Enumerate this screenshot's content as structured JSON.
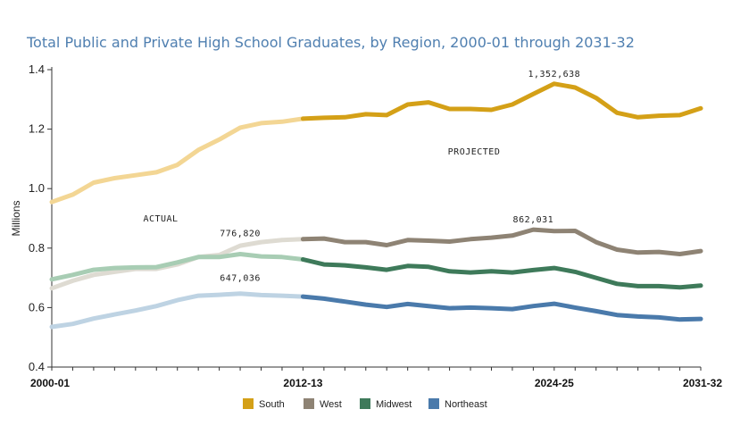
{
  "chart_data": {
    "type": "line",
    "title": "Total Public and Private High School Graduates, by Region, 2000-01 through 2031-32",
    "ylabel": "Millions",
    "xlabel": "",
    "ylim": [
      0.4,
      1.4
    ],
    "yticks": [
      "0.4",
      "0.6",
      "0.8",
      "1.0",
      "1.2",
      "1.4"
    ],
    "ytick_values": [
      0.4,
      0.6,
      0.8,
      1.0,
      1.2,
      1.4
    ],
    "x_tick_labels": [
      "2000-01",
      "2012-13",
      "2024-25",
      "2031-32"
    ],
    "x_tick_index": [
      0,
      12,
      24,
      31
    ],
    "projection_start_index": 12,
    "series": [
      {
        "name": "South",
        "color": "#d4a017",
        "light_color": "#f3d694",
        "values": [
          0.955,
          0.98,
          1.02,
          1.035,
          1.045,
          1.055,
          1.08,
          1.13,
          1.165,
          1.205,
          1.22,
          1.225,
          1.235,
          1.238,
          1.24,
          1.25,
          1.247,
          1.283,
          1.29,
          1.268,
          1.268,
          1.265,
          1.283,
          1.318,
          1.352638,
          1.34,
          1.305,
          1.255,
          1.24,
          1.245,
          1.247,
          1.27
        ]
      },
      {
        "name": "West",
        "color": "#8e8374",
        "light_color": "#dedbd2",
        "values": [
          0.665,
          0.69,
          0.71,
          0.72,
          0.73,
          0.73,
          0.745,
          0.77,
          0.77682,
          0.808,
          0.82,
          0.827,
          0.83,
          0.832,
          0.82,
          0.82,
          0.81,
          0.827,
          0.825,
          0.822,
          0.83,
          0.835,
          0.842,
          0.862031,
          0.857,
          0.858,
          0.82,
          0.795,
          0.785,
          0.787,
          0.78,
          0.79
        ]
      },
      {
        "name": "Midwest",
        "color": "#3e7a5a",
        "light_color": "#a8cdb4",
        "values": [
          0.695,
          0.71,
          0.727,
          0.733,
          0.735,
          0.736,
          0.752,
          0.77,
          0.77,
          0.78,
          0.772,
          0.77,
          0.762,
          0.745,
          0.742,
          0.735,
          0.727,
          0.74,
          0.737,
          0.722,
          0.718,
          0.722,
          0.718,
          0.726,
          0.733,
          0.72,
          0.7,
          0.68,
          0.672,
          0.672,
          0.668,
          0.674
        ]
      },
      {
        "name": "Northeast",
        "color": "#4a7aab",
        "light_color": "#bed3e3",
        "values": [
          0.535,
          0.545,
          0.563,
          0.577,
          0.59,
          0.605,
          0.625,
          0.64,
          0.643,
          0.647036,
          0.642,
          0.64,
          0.637,
          0.63,
          0.62,
          0.61,
          0.602,
          0.612,
          0.605,
          0.598,
          0.6,
          0.598,
          0.595,
          0.605,
          0.613,
          0.6,
          0.588,
          0.575,
          0.57,
          0.567,
          0.56,
          0.562
        ]
      }
    ],
    "annotations": [
      {
        "text": "1,352,638",
        "series": "South",
        "index": 24,
        "dy": -8
      },
      {
        "text": "862,031",
        "series": "West",
        "index": 23,
        "dy": -8
      },
      {
        "text": "776,820",
        "series": "Midwest",
        "index": 9,
        "dy": -20
      },
      {
        "text": "647,036",
        "series": "Northeast",
        "index": 9,
        "dy": -14
      }
    ],
    "region_labels": {
      "actual": "ACTUAL",
      "projected": "PROJECTED"
    },
    "legend": {
      "position": "bottom",
      "items": [
        "South",
        "West",
        "Midwest",
        "Northeast"
      ]
    },
    "grid": false
  }
}
